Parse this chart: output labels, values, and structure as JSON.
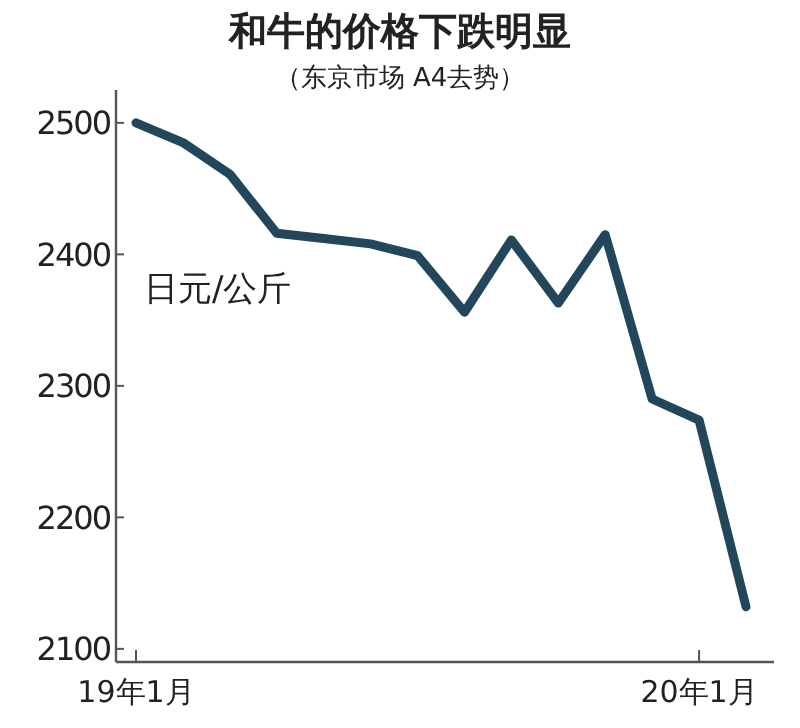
{
  "chart_data": {
    "type": "line",
    "title": "和牛的价格下跌明显",
    "subtitle": "（东京市场 A4去势）",
    "ylabel": "日元/公斤",
    "categories": [
      "19年1月",
      null,
      null,
      null,
      null,
      null,
      null,
      null,
      null,
      null,
      null,
      null,
      "20年1月",
      null
    ],
    "series": [
      {
        "color": "#23475a",
        "values": [
          2500,
          2485,
          2461,
          2416,
          2412,
          2408,
          2399,
          2356,
          2411,
          2363,
          2415,
          2290,
          2274,
          2132
        ]
      }
    ],
    "ylim": [
      2090,
      2525
    ],
    "yticks": [
      2100,
      2200,
      2300,
      2400,
      2500
    ],
    "marker": "none",
    "line_style": "solid"
  }
}
